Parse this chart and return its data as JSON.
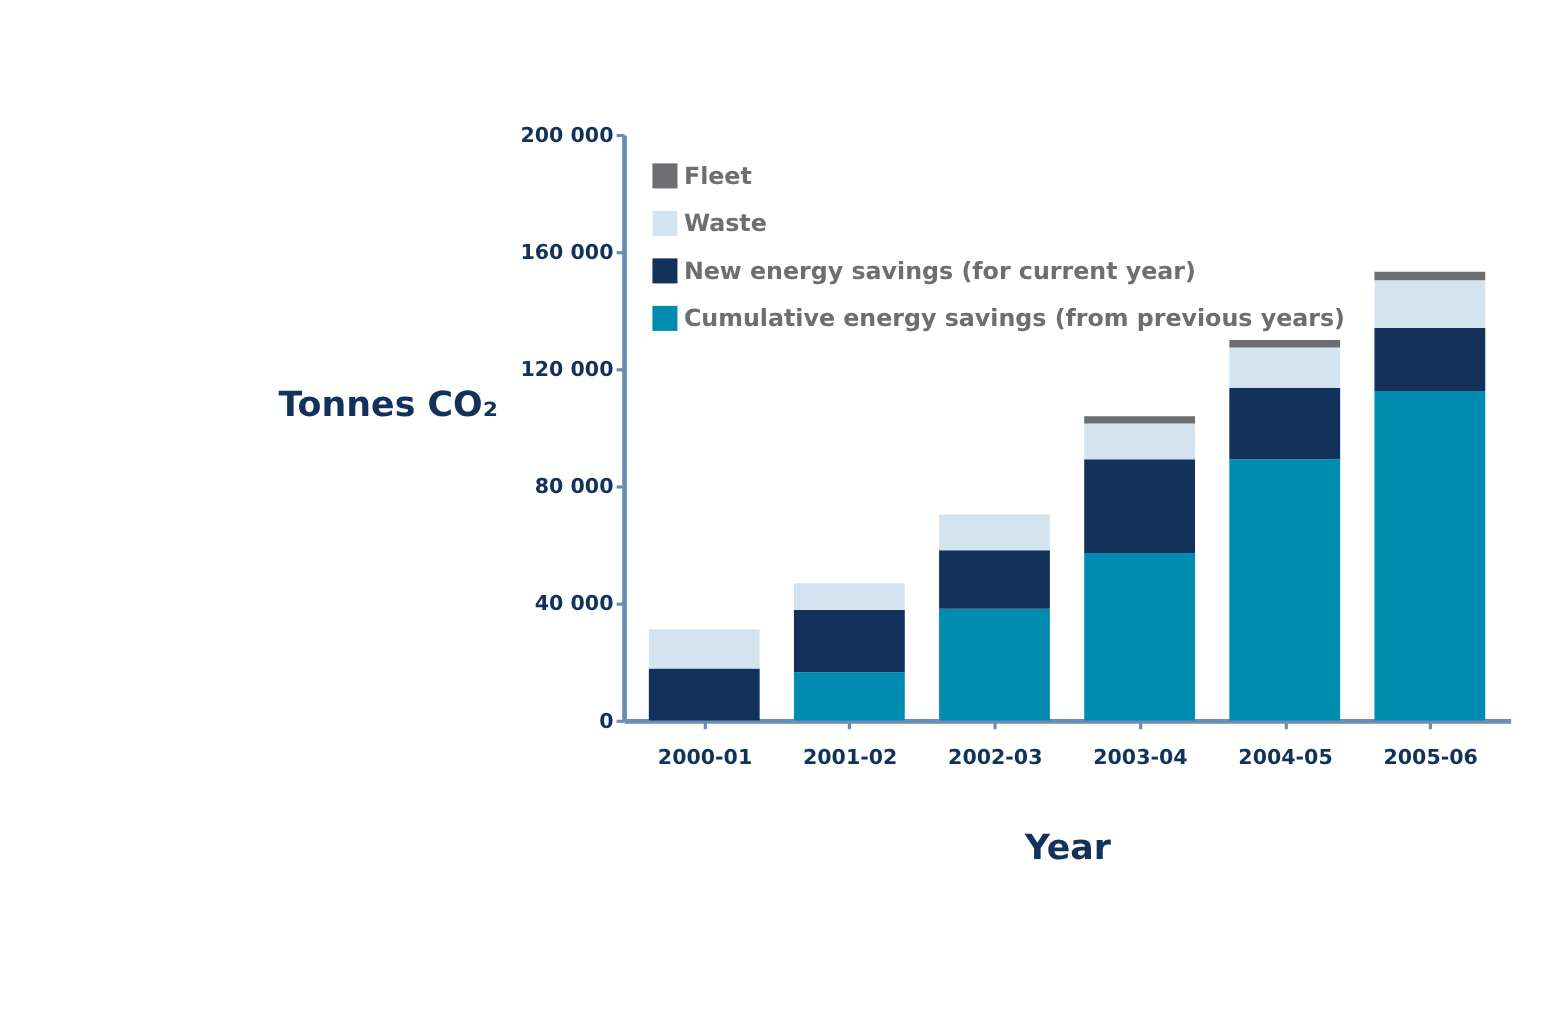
{
  "chart_data": {
    "type": "bar",
    "stacked": true,
    "xlabel": "Year",
    "ylabel": "Tonnes CO₂",
    "categories": [
      "2000-01",
      "2001-02",
      "2002-03",
      "2003-04",
      "2004-05",
      "2005-06"
    ],
    "series": [
      {
        "name": "Cumulative energy savings (from previous years)",
        "color": "#008cb0",
        "values": [
          null,
          16500,
          38200,
          57200,
          89200,
          112500
        ]
      },
      {
        "name": "New energy savings (for current year)",
        "color": "#13325b",
        "values": [
          17800,
          21200,
          19900,
          32000,
          24400,
          21500
        ]
      },
      {
        "name": "Waste",
        "color": "#d3e4f0",
        "values": [
          13400,
          9200,
          12200,
          12200,
          13800,
          16300
        ]
      },
      {
        "name": "Fleet",
        "color": "#6d6e71",
        "values": [
          null,
          null,
          null,
          2500,
          2500,
          2900
        ]
      }
    ],
    "ylim": [
      0,
      200000
    ],
    "yticks": [
      0,
      {
        "value": 40000,
        "label": "40 000"
      },
      {
        "value": 80000,
        "label": "80 000"
      },
      {
        "value": 120000,
        "label": "120 000"
      },
      {
        "value": 160000,
        "label": "160 000"
      },
      {
        "value": 200000,
        "label": "200 000"
      }
    ],
    "grid": false,
    "legend": "top left"
  }
}
